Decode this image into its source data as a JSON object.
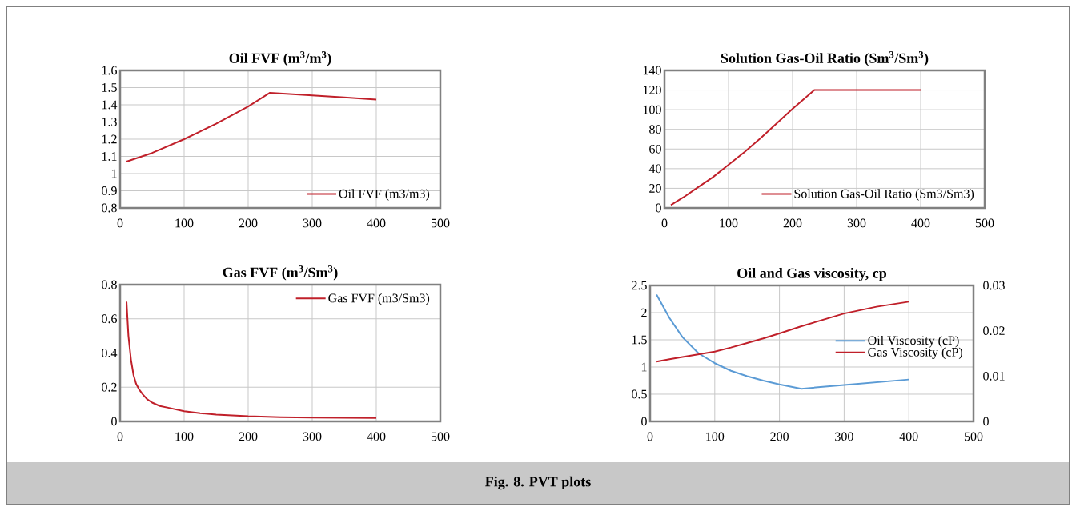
{
  "chart_data": [
    {
      "type": "line",
      "title": "Oil FVF (m$^{3}$/m$^{3}$)",
      "x": [
        10,
        30,
        50,
        75,
        100,
        125,
        150,
        175,
        200,
        234,
        300,
        350,
        400
      ],
      "series": [
        {
          "name": "Oil FVF (m3/m3)",
          "color": "#c0202a",
          "values": [
            1.07,
            1.095,
            1.12,
            1.16,
            1.2,
            1.245,
            1.29,
            1.34,
            1.39,
            1.47,
            1.455,
            1.443,
            1.43
          ]
        }
      ],
      "xlim": [
        0,
        500
      ],
      "xticks": [
        0,
        100,
        200,
        300,
        400,
        500
      ],
      "ylim": [
        0.8,
        1.6
      ],
      "yticks": [
        0.8,
        0.9,
        1,
        1.1,
        1.2,
        1.3,
        1.4,
        1.5,
        1.6
      ],
      "grid": true,
      "legend": "bottom right",
      "marker": "none",
      "line_style": "solid"
    },
    {
      "type": "line",
      "title": "Solution Gas-Oil Ratio (Sm$^{3}$/Sm$^{3}$)",
      "x": [
        10,
        30,
        50,
        75,
        100,
        125,
        150,
        175,
        200,
        234,
        300,
        400
      ],
      "series": [
        {
          "name": "Solution Gas-Oil Ratio (Sm3/Sm3)",
          "color": "#c0202a",
          "values": [
            3,
            11,
            20,
            31,
            44,
            57,
            71,
            86,
            101,
            120,
            120,
            120
          ]
        }
      ],
      "xlim": [
        0,
        500
      ],
      "xticks": [
        0,
        100,
        200,
        300,
        400,
        500
      ],
      "ylim": [
        0,
        140
      ],
      "yticks": [
        0,
        20,
        40,
        60,
        80,
        100,
        120,
        140
      ],
      "grid": true,
      "legend": "bottom right",
      "marker": "none",
      "line_style": "solid"
    },
    {
      "type": "line",
      "title": "Gas FVF (m$^{3}$/Sm$^{3}$)",
      "x": [
        10,
        13,
        17,
        21,
        25,
        30,
        35,
        42,
        50,
        62,
        75,
        100,
        125,
        150,
        200,
        250,
        300,
        400
      ],
      "series": [
        {
          "name": "Gas FVF (m3/Sm3)",
          "color": "#c0202a",
          "values": [
            0.7,
            0.5,
            0.36,
            0.27,
            0.22,
            0.185,
            0.16,
            0.13,
            0.11,
            0.09,
            0.08,
            0.06,
            0.048,
            0.04,
            0.03,
            0.025,
            0.022,
            0.02
          ]
        }
      ],
      "xlim": [
        0,
        500
      ],
      "xticks": [
        0,
        100,
        200,
        300,
        400,
        500
      ],
      "ylim": [
        0,
        0.8
      ],
      "yticks": [
        0,
        0.2,
        0.4,
        0.6,
        0.8
      ],
      "grid": true,
      "legend": "top right",
      "marker": "none",
      "line_style": "solid"
    },
    {
      "type": "line",
      "title": "Oil and Gas viscosity, cp",
      "x": [
        10,
        30,
        50,
        75,
        100,
        125,
        150,
        175,
        200,
        234,
        300,
        350,
        400
      ],
      "series": [
        {
          "name": "Oil Viscosity (cP)",
          "color": "#5b9bd5",
          "values": [
            2.33,
            1.9,
            1.55,
            1.25,
            1.07,
            0.93,
            0.83,
            0.75,
            0.68,
            0.6,
            0.67,
            0.72,
            0.77
          ]
        },
        {
          "name": "Gas Viscosity (cP)",
          "color": "#c0202a",
          "axis": "y2",
          "values": [
            0.0132,
            0.0137,
            0.0142,
            0.0148,
            0.0154,
            0.0163,
            0.0173,
            0.0183,
            0.0194,
            0.021,
            0.0238,
            0.0253,
            0.0264
          ]
        }
      ],
      "xlim": [
        0,
        500
      ],
      "xticks": [
        0,
        100,
        200,
        300,
        400,
        500
      ],
      "ylim": [
        0,
        2.5
      ],
      "yticks": [
        0,
        0.5,
        1,
        1.5,
        2,
        2.5
      ],
      "y2lim": [
        0,
        0.03
      ],
      "y2ticks": [
        0,
        0.01,
        0.02,
        0.03
      ],
      "grid": true,
      "legend": "right",
      "marker": "none",
      "line_style": "solid",
      "annotations": [
        "Fig. 8. PVT plots"
      ]
    }
  ]
}
